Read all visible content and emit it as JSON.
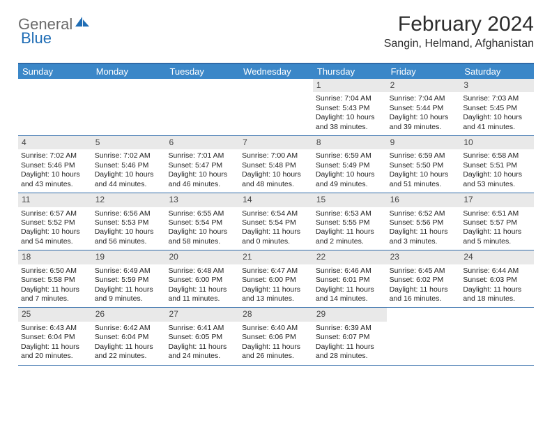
{
  "logo": {
    "part1": "General",
    "part2": "Blue"
  },
  "title": "February 2024",
  "subtitle": "Sangin, Helmand, Afghanistan",
  "colors": {
    "header_bg": "#3b87c8",
    "header_text": "#ffffff",
    "border": "#2f6aa8",
    "daynum_bg": "#e9e9e9",
    "logo_gray": "#6a6a6a",
    "logo_blue": "#1f6db5"
  },
  "weekdays": [
    "Sunday",
    "Monday",
    "Tuesday",
    "Wednesday",
    "Thursday",
    "Friday",
    "Saturday"
  ],
  "weeks": [
    [
      null,
      null,
      null,
      null,
      {
        "n": "1",
        "sr": "Sunrise: 7:04 AM",
        "ss": "Sunset: 5:43 PM",
        "d1": "Daylight: 10 hours",
        "d2": "and 38 minutes."
      },
      {
        "n": "2",
        "sr": "Sunrise: 7:04 AM",
        "ss": "Sunset: 5:44 PM",
        "d1": "Daylight: 10 hours",
        "d2": "and 39 minutes."
      },
      {
        "n": "3",
        "sr": "Sunrise: 7:03 AM",
        "ss": "Sunset: 5:45 PM",
        "d1": "Daylight: 10 hours",
        "d2": "and 41 minutes."
      }
    ],
    [
      {
        "n": "4",
        "sr": "Sunrise: 7:02 AM",
        "ss": "Sunset: 5:46 PM",
        "d1": "Daylight: 10 hours",
        "d2": "and 43 minutes."
      },
      {
        "n": "5",
        "sr": "Sunrise: 7:02 AM",
        "ss": "Sunset: 5:46 PM",
        "d1": "Daylight: 10 hours",
        "d2": "and 44 minutes."
      },
      {
        "n": "6",
        "sr": "Sunrise: 7:01 AM",
        "ss": "Sunset: 5:47 PM",
        "d1": "Daylight: 10 hours",
        "d2": "and 46 minutes."
      },
      {
        "n": "7",
        "sr": "Sunrise: 7:00 AM",
        "ss": "Sunset: 5:48 PM",
        "d1": "Daylight: 10 hours",
        "d2": "and 48 minutes."
      },
      {
        "n": "8",
        "sr": "Sunrise: 6:59 AM",
        "ss": "Sunset: 5:49 PM",
        "d1": "Daylight: 10 hours",
        "d2": "and 49 minutes."
      },
      {
        "n": "9",
        "sr": "Sunrise: 6:59 AM",
        "ss": "Sunset: 5:50 PM",
        "d1": "Daylight: 10 hours",
        "d2": "and 51 minutes."
      },
      {
        "n": "10",
        "sr": "Sunrise: 6:58 AM",
        "ss": "Sunset: 5:51 PM",
        "d1": "Daylight: 10 hours",
        "d2": "and 53 minutes."
      }
    ],
    [
      {
        "n": "11",
        "sr": "Sunrise: 6:57 AM",
        "ss": "Sunset: 5:52 PM",
        "d1": "Daylight: 10 hours",
        "d2": "and 54 minutes."
      },
      {
        "n": "12",
        "sr": "Sunrise: 6:56 AM",
        "ss": "Sunset: 5:53 PM",
        "d1": "Daylight: 10 hours",
        "d2": "and 56 minutes."
      },
      {
        "n": "13",
        "sr": "Sunrise: 6:55 AM",
        "ss": "Sunset: 5:54 PM",
        "d1": "Daylight: 10 hours",
        "d2": "and 58 minutes."
      },
      {
        "n": "14",
        "sr": "Sunrise: 6:54 AM",
        "ss": "Sunset: 5:54 PM",
        "d1": "Daylight: 11 hours",
        "d2": "and 0 minutes."
      },
      {
        "n": "15",
        "sr": "Sunrise: 6:53 AM",
        "ss": "Sunset: 5:55 PM",
        "d1": "Daylight: 11 hours",
        "d2": "and 2 minutes."
      },
      {
        "n": "16",
        "sr": "Sunrise: 6:52 AM",
        "ss": "Sunset: 5:56 PM",
        "d1": "Daylight: 11 hours",
        "d2": "and 3 minutes."
      },
      {
        "n": "17",
        "sr": "Sunrise: 6:51 AM",
        "ss": "Sunset: 5:57 PM",
        "d1": "Daylight: 11 hours",
        "d2": "and 5 minutes."
      }
    ],
    [
      {
        "n": "18",
        "sr": "Sunrise: 6:50 AM",
        "ss": "Sunset: 5:58 PM",
        "d1": "Daylight: 11 hours",
        "d2": "and 7 minutes."
      },
      {
        "n": "19",
        "sr": "Sunrise: 6:49 AM",
        "ss": "Sunset: 5:59 PM",
        "d1": "Daylight: 11 hours",
        "d2": "and 9 minutes."
      },
      {
        "n": "20",
        "sr": "Sunrise: 6:48 AM",
        "ss": "Sunset: 6:00 PM",
        "d1": "Daylight: 11 hours",
        "d2": "and 11 minutes."
      },
      {
        "n": "21",
        "sr": "Sunrise: 6:47 AM",
        "ss": "Sunset: 6:00 PM",
        "d1": "Daylight: 11 hours",
        "d2": "and 13 minutes."
      },
      {
        "n": "22",
        "sr": "Sunrise: 6:46 AM",
        "ss": "Sunset: 6:01 PM",
        "d1": "Daylight: 11 hours",
        "d2": "and 14 minutes."
      },
      {
        "n": "23",
        "sr": "Sunrise: 6:45 AM",
        "ss": "Sunset: 6:02 PM",
        "d1": "Daylight: 11 hours",
        "d2": "and 16 minutes."
      },
      {
        "n": "24",
        "sr": "Sunrise: 6:44 AM",
        "ss": "Sunset: 6:03 PM",
        "d1": "Daylight: 11 hours",
        "d2": "and 18 minutes."
      }
    ],
    [
      {
        "n": "25",
        "sr": "Sunrise: 6:43 AM",
        "ss": "Sunset: 6:04 PM",
        "d1": "Daylight: 11 hours",
        "d2": "and 20 minutes."
      },
      {
        "n": "26",
        "sr": "Sunrise: 6:42 AM",
        "ss": "Sunset: 6:04 PM",
        "d1": "Daylight: 11 hours",
        "d2": "and 22 minutes."
      },
      {
        "n": "27",
        "sr": "Sunrise: 6:41 AM",
        "ss": "Sunset: 6:05 PM",
        "d1": "Daylight: 11 hours",
        "d2": "and 24 minutes."
      },
      {
        "n": "28",
        "sr": "Sunrise: 6:40 AM",
        "ss": "Sunset: 6:06 PM",
        "d1": "Daylight: 11 hours",
        "d2": "and 26 minutes."
      },
      {
        "n": "29",
        "sr": "Sunrise: 6:39 AM",
        "ss": "Sunset: 6:07 PM",
        "d1": "Daylight: 11 hours",
        "d2": "and 28 minutes."
      },
      null,
      null
    ]
  ]
}
